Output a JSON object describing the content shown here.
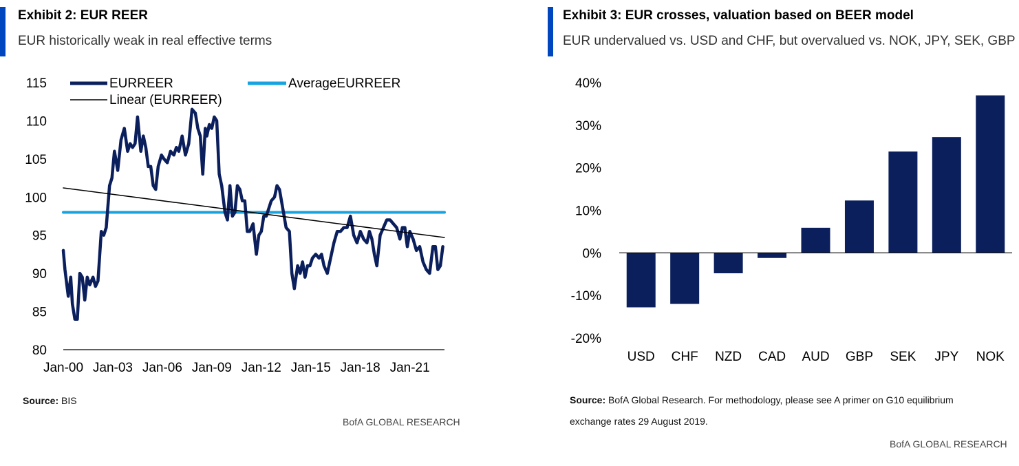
{
  "left": {
    "title": "Exhibit 2: EUR REER",
    "subtitle": "EUR historically weak in real effective terms",
    "source_label": "Source:",
    "source_text": " BIS",
    "brand": "BofA GLOBAL RESEARCH"
  },
  "right": {
    "title": "Exhibit 3: EUR crosses, valuation based on BEER model",
    "subtitle": "EUR undervalued vs. USD and CHF, but overvalued vs. NOK, JPY, SEK, GBP",
    "source_label": "Source:",
    "source_text": " BofA Global Research. For methodology, please see A primer on G10 equilibrium",
    "source_text_line2": "exchange rates 29 August 2019.",
    "brand": "BofA GLOBAL RESEARCH"
  },
  "colors": {
    "accent": "#0046be",
    "navy": "#0b1f5c",
    "light_blue": "#17a3e0",
    "trend": "#000000"
  },
  "chart_data": [
    {
      "type": "line",
      "title": "Exhibit 2: EUR REER",
      "xlabel": "",
      "ylabel": "",
      "ylim": [
        80,
        115
      ],
      "yticks": [
        80,
        85,
        90,
        95,
        100,
        105,
        110,
        115
      ],
      "xticks": [
        "Jan-00",
        "Jan-03",
        "Jan-06",
        "Jan-09",
        "Jan-12",
        "Jan-15",
        "Jan-18",
        "Jan-21"
      ],
      "xlim": [
        2000.0,
        2023.1
      ],
      "legend": [
        "EURREER",
        "AverageEURREER",
        "Linear (EURREER)"
      ],
      "series": [
        {
          "name": "EURREER",
          "x": [
            2000.0,
            2000.1,
            2000.3,
            2000.45,
            2000.55,
            2000.7,
            2000.85,
            2001.0,
            2001.15,
            2001.3,
            2001.45,
            2001.6,
            2001.8,
            2001.95,
            2002.1,
            2002.3,
            2002.45,
            2002.6,
            2002.8,
            2002.95,
            2003.1,
            2003.3,
            2003.5,
            2003.7,
            2003.9,
            2004.05,
            2004.2,
            2004.35,
            2004.5,
            2004.7,
            2004.85,
            2005.0,
            2005.15,
            2005.3,
            2005.45,
            2005.6,
            2005.75,
            2005.95,
            2006.1,
            2006.3,
            2006.5,
            2006.7,
            2006.85,
            2007.0,
            2007.2,
            2007.4,
            2007.6,
            2007.8,
            2008.0,
            2008.15,
            2008.3,
            2008.45,
            2008.6,
            2008.7,
            2008.85,
            2009.0,
            2009.15,
            2009.3,
            2009.45,
            2009.6,
            2009.8,
            2009.95,
            2010.1,
            2010.25,
            2010.4,
            2010.55,
            2010.7,
            2010.85,
            2011.0,
            2011.15,
            2011.3,
            2011.5,
            2011.7,
            2011.85,
            2012.0,
            2012.15,
            2012.3,
            2012.45,
            2012.6,
            2012.8,
            2012.95,
            2013.1,
            2013.3,
            2013.5,
            2013.7,
            2013.85,
            2014.0,
            2014.2,
            2014.35,
            2014.5,
            2014.65,
            2014.8,
            2014.95,
            2015.1,
            2015.3,
            2015.5,
            2015.65,
            2015.8,
            2016.0,
            2016.2,
            2016.4,
            2016.6,
            2016.8,
            2017.0,
            2017.2,
            2017.4,
            2017.6,
            2017.8,
            2018.0,
            2018.2,
            2018.4,
            2018.55,
            2018.7,
            2018.85,
            2019.0,
            2019.2,
            2019.4,
            2019.6,
            2019.8,
            2020.0,
            2020.2,
            2020.4,
            2020.55,
            2020.7,
            2020.85,
            2021.0,
            2021.2,
            2021.4,
            2021.6,
            2021.8,
            2022.0,
            2022.2,
            2022.4,
            2022.55,
            2022.7,
            2022.85,
            2023.0
          ],
          "values": [
            93.0,
            90.5,
            87.0,
            89.5,
            86.0,
            84.0,
            84.0,
            90.0,
            89.5,
            86.5,
            89.5,
            88.5,
            89.5,
            88.3,
            89.0,
            95.5,
            95.0,
            96.0,
            101.5,
            102.5,
            106.0,
            103.5,
            107.5,
            109.0,
            106.0,
            107.0,
            106.5,
            107.0,
            110.5,
            106.0,
            108.0,
            106.5,
            104.0,
            104.0,
            101.5,
            101.0,
            104.0,
            105.5,
            105.0,
            104.5,
            106.0,
            105.5,
            106.5,
            106.0,
            108.0,
            105.5,
            107.0,
            111.5,
            111.0,
            109.0,
            108.0,
            103.0,
            109.0,
            108.0,
            109.5,
            109.0,
            110.5,
            110.0,
            103.0,
            101.5,
            98.0,
            97.0,
            101.5,
            97.5,
            98.0,
            101.5,
            101.0,
            99.5,
            99.5,
            95.5,
            95.5,
            96.5,
            92.5,
            95.0,
            95.5,
            97.5,
            97.5,
            98.5,
            99.5,
            100.0,
            101.5,
            101.0,
            98.5,
            96.0,
            95.5,
            90.0,
            88.0,
            91.0,
            90.0,
            91.5,
            89.5,
            91.0,
            91.0,
            92.0,
            92.5,
            92.0,
            92.5,
            91.0,
            90.0,
            92.0,
            94.0,
            95.5,
            95.5,
            96.0,
            96.0,
            97.5,
            95.0,
            94.0,
            95.5,
            94.5,
            94.0,
            95.5,
            94.5,
            92.5,
            91.0,
            95.0,
            96.0,
            97.0,
            97.0,
            96.5,
            96.0,
            94.5,
            96.0,
            96.0,
            93.5,
            95.5,
            94.5,
            93.0,
            93.5,
            91.5,
            90.5,
            90.0,
            93.5,
            93.5,
            90.5,
            91.0,
            93.5
          ],
          "color": "#0b1f5c"
        },
        {
          "name": "AverageEURREER",
          "x": [
            2000.0,
            2023.1
          ],
          "values": [
            98.0,
            98.0
          ],
          "color": "#17a3e0"
        },
        {
          "name": "Linear (EURREER)",
          "x": [
            2000.0,
            2023.1
          ],
          "values": [
            101.2,
            94.7
          ],
          "color": "#000000"
        }
      ]
    },
    {
      "type": "bar",
      "title": "Exhibit 3: EUR crosses, valuation based on BEER model",
      "xlabel": "",
      "ylabel": "",
      "ylim": [
        -20,
        40
      ],
      "yticks": [
        -20,
        -10,
        0,
        10,
        20,
        30,
        40
      ],
      "ytick_labels": [
        "-20%",
        "-10%",
        "0%",
        "10%",
        "20%",
        "30%",
        "40%"
      ],
      "categories": [
        "USD",
        "CHF",
        "NZD",
        "CAD",
        "AUD",
        "GBP",
        "SEK",
        "JPY",
        "NOK"
      ],
      "values": [
        -12.8,
        -12.0,
        -4.8,
        -1.2,
        5.9,
        12.3,
        23.8,
        27.2,
        37.0
      ],
      "color": "#0b1f5c"
    }
  ]
}
